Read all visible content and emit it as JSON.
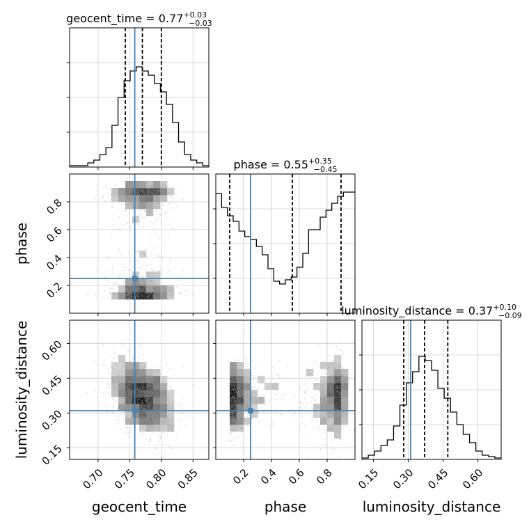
{
  "chart_data": {
    "type": "corner",
    "parameters": [
      "geocent_time",
      "phase",
      "luminosity_distance"
    ],
    "truths": {
      "geocent_time": 0.758,
      "phase": 0.25,
      "luminosity_distance": 0.31
    },
    "ranges": {
      "geocent_time": [
        0.655,
        0.875
      ],
      "phase": [
        0.0,
        1.0
      ],
      "luminosity_distance": [
        0.1,
        0.7
      ]
    },
    "ticks": {
      "geocent_time": [
        "0.70",
        "0.75",
        "0.80",
        "0.85"
      ],
      "phase": [
        "0.2",
        "0.4",
        "0.6",
        "0.8"
      ],
      "luminosity_distance": [
        "0.15",
        "0.30",
        "0.45",
        "0.60"
      ]
    },
    "titles": {
      "geocent_time": {
        "name": "geocent_time",
        "median": "0.77",
        "plus": "+0.03",
        "minus": "−0.03"
      },
      "phase": {
        "name": "phase",
        "median": "0.55",
        "plus": "+0.35",
        "minus": "−0.45"
      },
      "luminosity_distance": {
        "name": "luminosity_distance",
        "median": "0.37",
        "plus": "+0.10",
        "minus": "−0.09"
      }
    },
    "quantiles": {
      "geocent_time": [
        0.743,
        0.77,
        0.8
      ],
      "phase": [
        0.1,
        0.55,
        0.9
      ],
      "luminosity_distance": [
        0.28,
        0.37,
        0.47
      ]
    },
    "histograms": {
      "geocent_time": {
        "range": [
          0.655,
          0.875
        ],
        "counts": [
          0.01,
          0.01,
          0.01,
          0.03,
          0.05,
          0.09,
          0.14,
          0.3,
          0.5,
          0.62,
          0.69,
          0.72,
          0.69,
          0.66,
          0.6,
          0.54,
          0.45,
          0.32,
          0.18,
          0.09,
          0.05,
          0.03,
          0.01
        ]
      },
      "phase": {
        "range": [
          0.0,
          1.0
        ],
        "counts": [
          0.86,
          0.76,
          0.7,
          0.66,
          0.59,
          0.55,
          0.53,
          0.48,
          0.42,
          0.32,
          0.23,
          0.21,
          0.24,
          0.26,
          0.33,
          0.43,
          0.6,
          0.6,
          0.69,
          0.74,
          0.79,
          0.84,
          0.87,
          0.87
        ]
      },
      "luminosity_distance": {
        "range": [
          0.1,
          0.7
        ],
        "counts": [
          0.01,
          0.03,
          0.06,
          0.1,
          0.14,
          0.24,
          0.39,
          0.55,
          0.63,
          0.74,
          0.71,
          0.64,
          0.51,
          0.44,
          0.34,
          0.25,
          0.18,
          0.12,
          0.06,
          0.03,
          0.02,
          0.01
        ]
      }
    },
    "grid": true,
    "colors": {
      "truth": "#4682b4",
      "hist": "#000000",
      "quantile": "#000000",
      "density": "#000000"
    }
  },
  "axes": {
    "xlabels": [
      "geocent_time",
      "phase",
      "luminosity_distance"
    ],
    "ylabels": [
      "phase",
      "luminosity_distance"
    ]
  }
}
